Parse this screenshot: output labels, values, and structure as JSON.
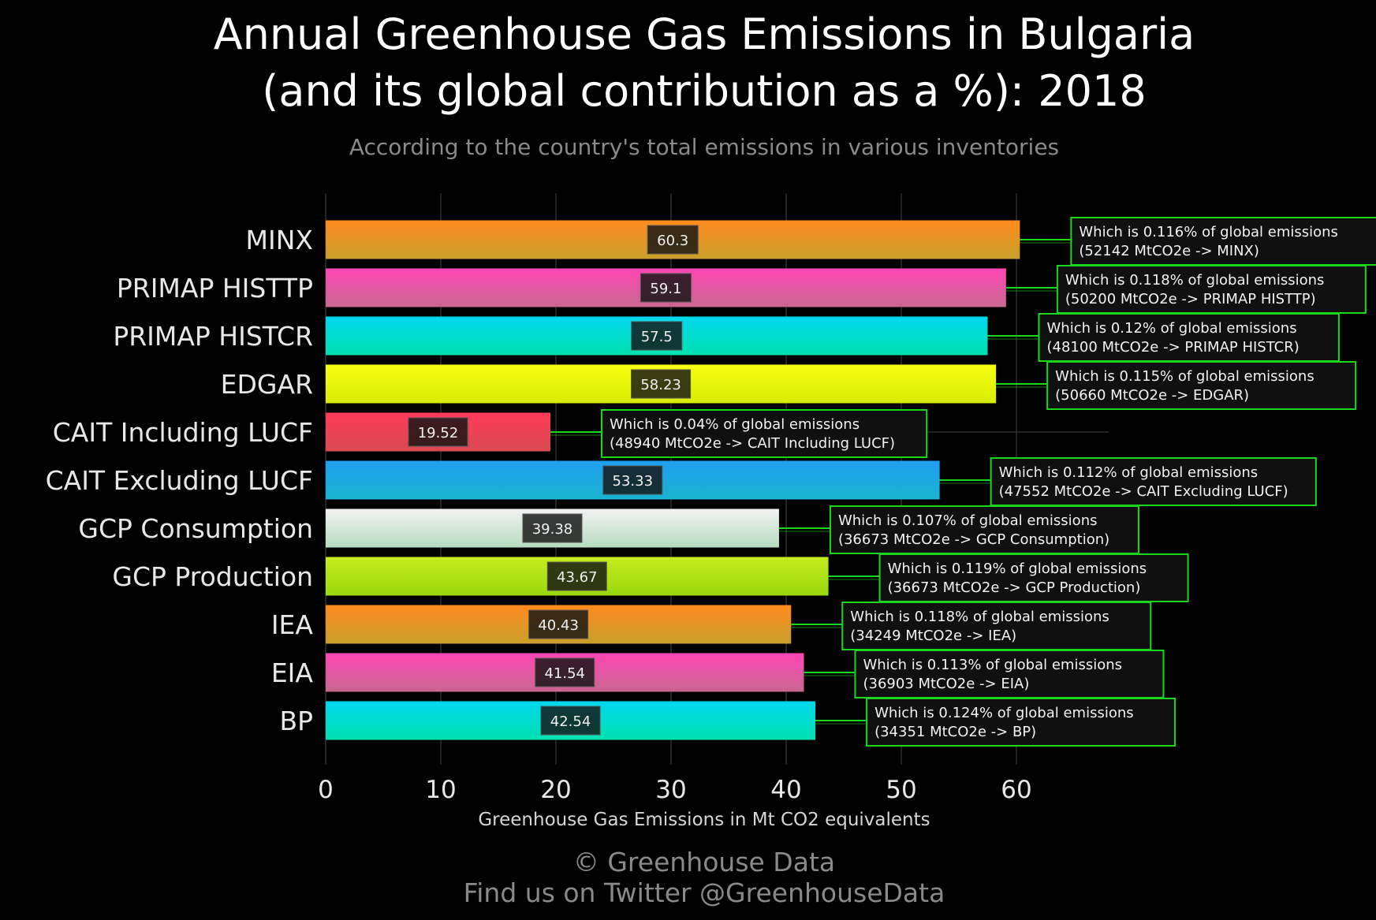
{
  "chart_data": {
    "type": "bar",
    "orientation": "horizontal",
    "title_lines": [
      "Annual Greenhouse Gas Emissions in Bulgaria",
      "(and its global contribution as a %): 2018"
    ],
    "subtitle": "According to the country's total emissions in various inventories",
    "xlabel": "Greenhouse Gas Emissions in Mt CO2 equivalents",
    "xlim": [
      0,
      68
    ],
    "xticks": [
      0,
      10,
      20,
      30,
      40,
      50,
      60
    ],
    "grid": true,
    "categories": [
      "MINX",
      "PRIMAP HISTTP",
      "PRIMAP HISTCR",
      "EDGAR",
      "CAIT Including LUCF",
      "CAIT Excluding LUCF",
      "GCP Consumption",
      "GCP Production",
      "IEA",
      "EIA",
      "BP"
    ],
    "values": [
      60.3,
      59.1,
      57.5,
      58.23,
      19.52,
      53.33,
      39.38,
      43.67,
      40.43,
      41.54,
      42.54
    ],
    "value_labels": [
      "60.3",
      "59.1",
      "57.5",
      "58.23",
      "19.52",
      "53.33",
      "39.38",
      "43.67",
      "40.43",
      "41.54",
      "42.54"
    ],
    "annotations": [
      [
        "Which is 0.116% of global emissions",
        "(52142 MtCO2e -> MINX)"
      ],
      [
        "Which is 0.118% of global emissions",
        "(50200 MtCO2e -> PRIMAP HISTTP)"
      ],
      [
        "Which is 0.12% of global emissions",
        "(48100 MtCO2e -> PRIMAP HISTCR)"
      ],
      [
        "Which is 0.115% of global emissions",
        "(50660 MtCO2e -> EDGAR)"
      ],
      [
        "Which is 0.04% of global emissions",
        "(48940 MtCO2e -> CAIT Including LUCF)"
      ],
      [
        "Which is 0.112% of global emissions",
        "(47552 MtCO2e -> CAIT Excluding LUCF)"
      ],
      [
        "Which is 0.107% of global emissions",
        "(36673 MtCO2e -> GCP Consumption)"
      ],
      [
        "Which is 0.119% of global emissions",
        "(36673 MtCO2e -> GCP Production)"
      ],
      [
        "Which is 0.118% of global emissions",
        "(34249 MtCO2e -> IEA)"
      ],
      [
        "Which is 0.113% of global emissions",
        "(36903 MtCO2e -> EIA)"
      ],
      [
        "Which is 0.124% of global emissions",
        "(34351 MtCO2e -> BP)"
      ]
    ],
    "bar_gradients": [
      [
        "#ff8a1e",
        "#c9a02a"
      ],
      [
        "#ff45b3",
        "#c7688f"
      ],
      [
        "#00d8ee",
        "#00e0b0"
      ],
      [
        "#f8ff12",
        "#d8ec00"
      ],
      [
        "#ff3a5a",
        "#d84a50"
      ],
      [
        "#1e9ef0",
        "#1ab4d0"
      ],
      [
        "#f2f2f2",
        "#b6dcc0"
      ],
      [
        "#c6ec1e",
        "#98d80e"
      ],
      [
        "#ff8a1e",
        "#c9a02a"
      ],
      [
        "#ff45b3",
        "#c7688f"
      ],
      [
        "#00d8ee",
        "#00e0b0"
      ]
    ],
    "annotation_border_color": "#19d81c",
    "connector_color": "#19d81c"
  },
  "footer": {
    "line1": "© Greenhouse Data",
    "line2": "Find us on Twitter @GreenhouseData"
  }
}
